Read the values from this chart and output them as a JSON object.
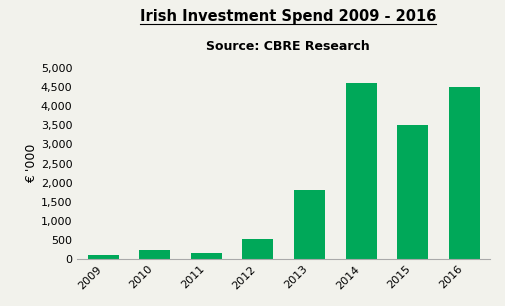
{
  "title": "Irish Investment Spend 2009 - 2016",
  "subtitle": "Source: CBRE Research",
  "ylabel": "€ '000",
  "years": [
    "2009",
    "2010",
    "2011",
    "2012",
    "2013",
    "2014",
    "2015",
    "2016"
  ],
  "values": [
    100,
    230,
    170,
    530,
    1800,
    4600,
    3500,
    4500
  ],
  "bar_color": "#00A859",
  "ylim": [
    0,
    5000
  ],
  "yticks": [
    0,
    500,
    1000,
    1500,
    2000,
    2500,
    3000,
    3500,
    4000,
    4500,
    5000
  ],
  "background_color": "#F2F2EC",
  "title_fontsize": 10.5,
  "subtitle_fontsize": 9,
  "ylabel_fontsize": 9,
  "tick_fontsize": 8
}
